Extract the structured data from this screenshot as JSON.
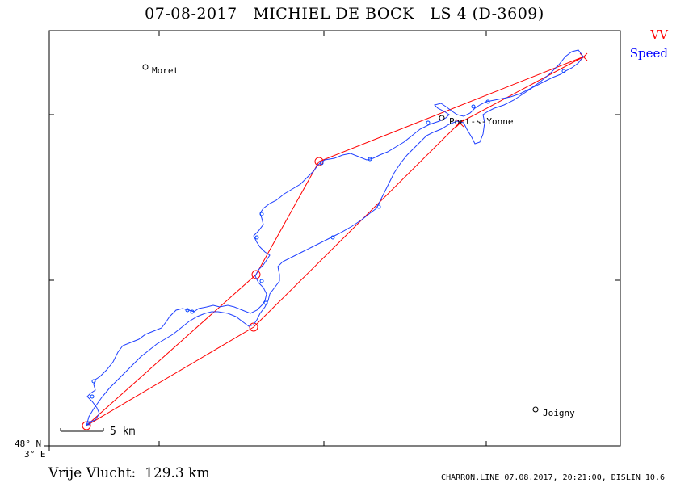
{
  "header": {
    "title": "07-08-2017   MICHIEL DE BOCK   LS 4 (D-3609)"
  },
  "legend": {
    "vv_label": "VV",
    "speed_label": "Speed",
    "vv_color": "#ff0000",
    "speed_color": "#0000ff"
  },
  "places": [
    {
      "name": "Moret"
    },
    {
      "name": "Pont-s-Yonne"
    },
    {
      "name": "Joigny"
    }
  ],
  "scale_bar": {
    "label": "5  km"
  },
  "coords": {
    "lat": "48° N",
    "lon": "3° E"
  },
  "footer": {
    "distance": "Vrije Vlucht:  129.3 km",
    "info": "CHARRON.LINE 07.08.2017, 20:21:00, DISLIN 10.6"
  }
}
